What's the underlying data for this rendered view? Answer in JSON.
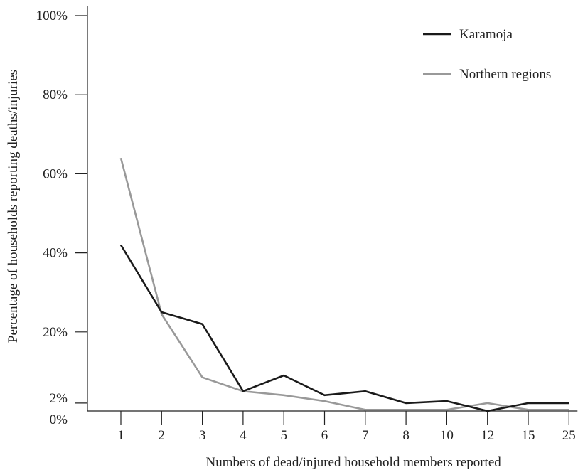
{
  "chart_data": {
    "type": "line",
    "title": "",
    "xlabel": "Numbers of dead/injured household members reported",
    "ylabel": "Percentage of households reporting deaths/injuries",
    "categories": [
      "1",
      "2",
      "3",
      "4",
      "5",
      "6",
      "7",
      "8",
      "10",
      "12",
      "15",
      "25"
    ],
    "y_ticks": [
      "0%",
      "2%",
      "20%",
      "40%",
      "60%",
      "80%",
      "100%"
    ],
    "ylim": [
      0,
      100
    ],
    "grid": false,
    "legend_position": "top-right",
    "series": [
      {
        "name": "Karamoja",
        "color": "#1a1a1a",
        "values": [
          42,
          25,
          22,
          5,
          9,
          4,
          5,
          2,
          2.5,
          0,
          2,
          2
        ]
      },
      {
        "name": "Northern regions",
        "color": "#999999",
        "values": [
          64,
          24.5,
          8.5,
          5,
          4,
          2.5,
          0.3,
          0.3,
          0.3,
          2,
          0.3,
          0.3
        ]
      }
    ]
  }
}
